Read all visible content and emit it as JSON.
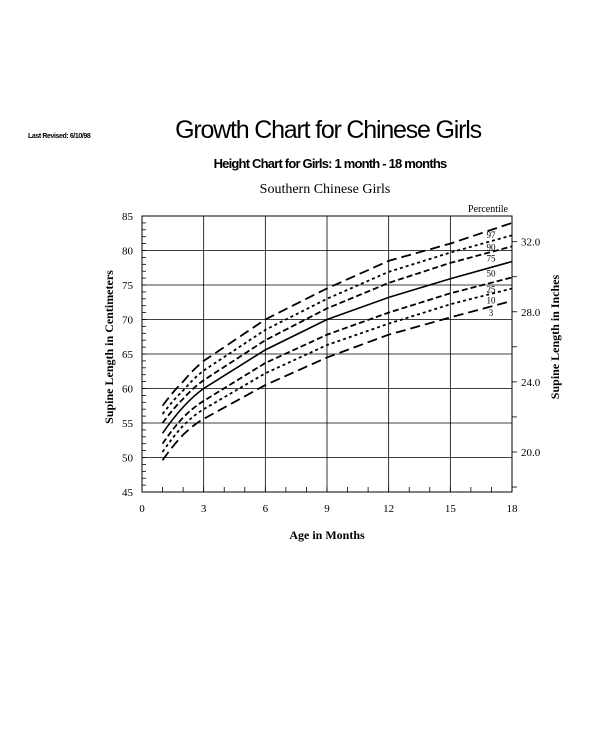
{
  "header": {
    "last_revised": "Last Revised: 6/10/98",
    "title": "Growth Chart for Chinese Girls",
    "subtitle": "Height Chart for Girls: 1 month - 18 months",
    "chart_title": "Southern Chinese Girls"
  },
  "chart_data": {
    "type": "line",
    "title": "Southern Chinese Girls",
    "xlabel": "Age in Months",
    "ylabel": "Supine Length in Centimeters",
    "y2label": "Supine Length in Inches",
    "legend_title": "Percentile",
    "xlim": [
      0,
      18
    ],
    "ylim": [
      45,
      85
    ],
    "x_ticks": [
      0,
      3,
      6,
      9,
      12,
      15,
      18
    ],
    "y_ticks": [
      45,
      50,
      55,
      60,
      65,
      70,
      75,
      80,
      85
    ],
    "y2_ticks": [
      "20.0",
      "24.0",
      "28.0",
      "32.0"
    ],
    "y2_tick_values_cm": [
      50.8,
      60.96,
      71.12,
      81.28
    ],
    "grid": true,
    "x": [
      1,
      2,
      3,
      6,
      9,
      12,
      15,
      18
    ],
    "series": [
      {
        "name": "97",
        "style": "long-dash",
        "values": [
          57.5,
          61.0,
          64.0,
          70.0,
          74.5,
          78.5,
          81.0,
          84.0
        ]
      },
      {
        "name": "90",
        "style": "dotted",
        "values": [
          56.3,
          59.7,
          62.6,
          68.5,
          73.0,
          76.9,
          79.7,
          82.2
        ]
      },
      {
        "name": "75",
        "style": "dashed",
        "values": [
          55.0,
          58.5,
          61.2,
          67.0,
          71.6,
          75.3,
          78.2,
          80.6
        ]
      },
      {
        "name": "50",
        "style": "solid",
        "values": [
          53.5,
          57.3,
          60.0,
          65.6,
          70.0,
          73.2,
          75.9,
          78.4
        ]
      },
      {
        "name": "25",
        "style": "dashed",
        "values": [
          52.0,
          55.8,
          58.2,
          63.7,
          67.8,
          71.0,
          73.8,
          76.1
        ]
      },
      {
        "name": "10",
        "style": "dotted",
        "values": [
          50.8,
          54.6,
          57.0,
          62.2,
          66.3,
          69.4,
          72.2,
          74.5
        ]
      },
      {
        "name": "3",
        "style": "long-dash",
        "values": [
          49.6,
          53.3,
          55.6,
          60.5,
          64.5,
          67.8,
          70.3,
          72.7
        ]
      }
    ]
  }
}
